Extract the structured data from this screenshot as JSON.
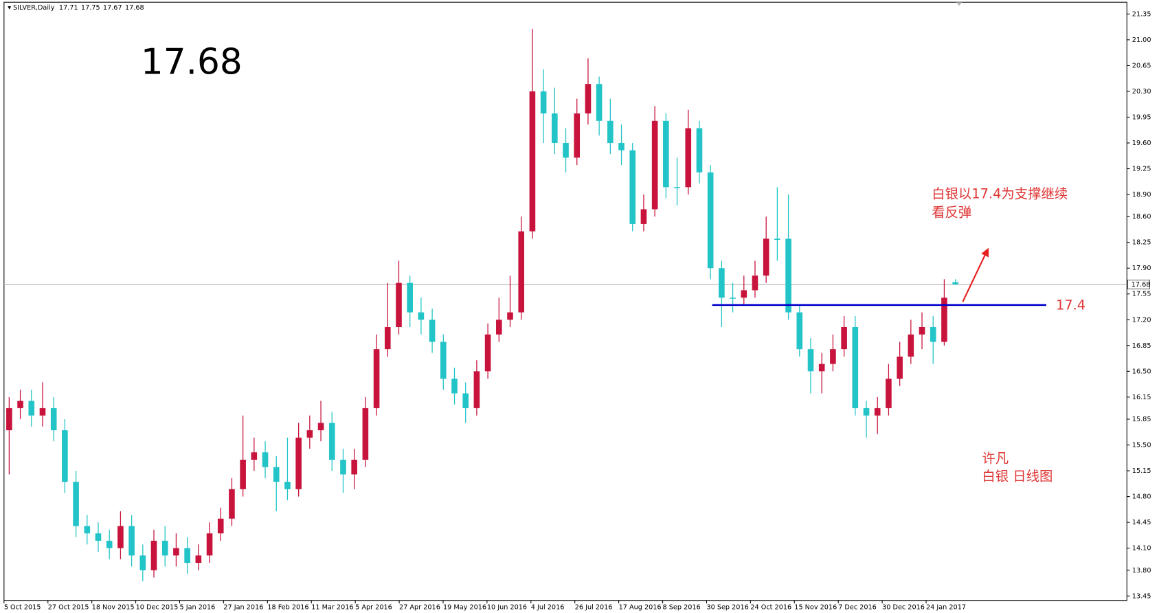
{
  "chart_data": {
    "type": "candlestick",
    "title": "SILVER,Daily",
    "categories": [
      "5 Oct 2015",
      null,
      null,
      null,
      "27 Oct 2015",
      null,
      null,
      null,
      "18 Nov 2015",
      null,
      null,
      null,
      "10 Dec 2015",
      null,
      null,
      null,
      "5 Jan 2016",
      null,
      null,
      null,
      "27 Jan 2016",
      null,
      null,
      null,
      "18 Feb 2016",
      null,
      null,
      null,
      "11 Mar 2016",
      null,
      null,
      null,
      "5 Apr 2016",
      null,
      null,
      null,
      "27 Apr 2016",
      null,
      null,
      null,
      "19 May 2016",
      null,
      null,
      null,
      "10 Jun 2016",
      null,
      null,
      null,
      "4 Jul 2016",
      null,
      null,
      null,
      "26 Jul 2016",
      null,
      null,
      null,
      "17 Aug 2016",
      null,
      null,
      null,
      "8 Sep 2016",
      null,
      null,
      null,
      "30 Sep 2016",
      null,
      null,
      null,
      "24 Oct 2016",
      null,
      null,
      null,
      "15 Nov 2016",
      null,
      null,
      null,
      "7 Dec 2016",
      null,
      null,
      null,
      "30 Dec 2016",
      null,
      null,
      null,
      "24 Jan 2017",
      null
    ],
    "open": [
      15.7,
      16.0,
      16.1,
      15.9,
      16.0,
      15.7,
      15.0,
      14.4,
      14.3,
      14.2,
      14.1,
      14.4,
      14.0,
      13.8,
      14.2,
      14.0,
      14.1,
      13.9,
      14.0,
      14.3,
      14.5,
      14.9,
      15.3,
      15.4,
      15.2,
      15.0,
      14.9,
      15.6,
      15.7,
      15.8,
      15.3,
      15.1,
      15.3,
      16.0,
      16.8,
      17.1,
      17.7,
      17.3,
      17.2,
      16.9,
      16.4,
      16.2,
      16.0,
      16.5,
      17.0,
      17.2,
      17.3,
      18.4,
      20.3,
      20.0,
      19.6,
      19.4,
      20.0,
      20.4,
      19.9,
      19.6,
      19.5,
      18.5,
      18.7,
      19.9,
      19.0,
      19.0,
      19.8,
      19.2,
      17.9,
      17.5,
      17.5,
      17.6,
      17.8,
      18.3,
      18.3,
      17.3,
      16.8,
      16.5,
      16.6,
      16.8,
      17.1,
      16.0,
      15.9,
      16.0,
      16.4,
      16.7,
      17.0,
      17.1,
      16.9,
      17.71
    ],
    "high": [
      16.15,
      16.25,
      16.25,
      16.35,
      16.15,
      15.85,
      15.15,
      14.55,
      14.45,
      14.35,
      14.6,
      14.55,
      14.15,
      14.35,
      14.4,
      14.3,
      14.25,
      14.15,
      14.45,
      14.65,
      15.05,
      15.9,
      15.6,
      15.55,
      15.35,
      15.6,
      15.8,
      15.9,
      16.1,
      15.95,
      15.45,
      15.45,
      16.15,
      17.0,
      17.7,
      18.0,
      17.8,
      17.5,
      17.35,
      17.0,
      16.55,
      16.35,
      16.65,
      17.15,
      17.5,
      17.8,
      18.6,
      21.15,
      20.6,
      20.35,
      19.8,
      20.2,
      20.75,
      20.5,
      20.2,
      19.85,
      19.6,
      18.9,
      20.1,
      20.0,
      19.4,
      20.05,
      19.9,
      19.3,
      18.0,
      17.7,
      17.8,
      18.0,
      18.6,
      19.0,
      18.9,
      17.4,
      16.95,
      16.75,
      17.0,
      17.25,
      17.25,
      16.1,
      16.15,
      16.6,
      16.9,
      17.2,
      17.3,
      17.25,
      17.75,
      17.75
    ],
    "low": [
      15.1,
      15.85,
      15.75,
      15.75,
      15.55,
      14.85,
      14.25,
      14.15,
      14.05,
      13.95,
      13.95,
      13.85,
      13.65,
      13.7,
      13.85,
      13.85,
      13.75,
      13.8,
      13.9,
      14.2,
      14.4,
      14.8,
      15.15,
      15.05,
      14.6,
      14.75,
      14.8,
      15.45,
      15.55,
      15.15,
      14.85,
      14.9,
      15.2,
      15.9,
      16.7,
      17.0,
      17.1,
      17.0,
      16.75,
      16.25,
      16.05,
      15.8,
      15.9,
      16.4,
      16.9,
      17.1,
      17.2,
      18.3,
      19.6,
      19.45,
      19.2,
      19.3,
      19.85,
      19.7,
      19.45,
      19.3,
      18.4,
      18.4,
      18.6,
      18.85,
      18.75,
      18.9,
      19.05,
      17.75,
      17.1,
      17.3,
      17.4,
      17.5,
      17.7,
      18.0,
      17.2,
      16.7,
      16.2,
      16.2,
      16.5,
      16.7,
      15.9,
      15.6,
      15.65,
      15.9,
      16.3,
      16.6,
      16.8,
      16.6,
      16.85,
      17.67
    ],
    "close": [
      16.0,
      16.1,
      15.9,
      16.0,
      15.7,
      15.0,
      14.4,
      14.3,
      14.2,
      14.1,
      14.4,
      14.0,
      13.8,
      14.2,
      14.0,
      14.1,
      13.9,
      14.0,
      14.3,
      14.5,
      14.9,
      15.3,
      15.4,
      15.2,
      15.0,
      14.9,
      15.6,
      15.7,
      15.8,
      15.3,
      15.1,
      15.3,
      16.0,
      16.8,
      17.1,
      17.7,
      17.3,
      17.2,
      16.9,
      16.4,
      16.2,
      16.0,
      16.5,
      17.0,
      17.2,
      17.3,
      18.4,
      20.3,
      20.0,
      19.6,
      19.4,
      20.0,
      20.4,
      19.9,
      19.6,
      19.5,
      18.5,
      18.7,
      19.9,
      19.0,
      19.0,
      19.8,
      19.2,
      17.9,
      17.5,
      17.5,
      17.6,
      17.8,
      18.3,
      18.3,
      17.3,
      16.8,
      16.5,
      16.6,
      16.8,
      17.1,
      16.0,
      15.9,
      16.0,
      16.4,
      16.7,
      17.0,
      17.1,
      16.9,
      17.5,
      17.68
    ],
    "up_color": "#c8143c",
    "down_color": "#22c4c8",
    "ylim": [
      13.39,
      21.51
    ],
    "yticks": [
      13.45,
      {
        "value": 13.8,
        "label": "13.80"
      },
      {
        "value": 14.1,
        "label": "14.10"
      },
      14.45,
      {
        "value": 14.8,
        "label": "14.80"
      },
      15.15,
      {
        "value": 15.5,
        "label": "15.50"
      },
      15.85,
      16.15,
      {
        "value": 16.5,
        "label": "16.50"
      },
      16.85,
      {
        "value": 17.2,
        "label": "17.20"
      },
      17.55,
      {
        "value": 17.9,
        "label": "17.90"
      },
      18.25,
      {
        "value": 18.6,
        "label": "18.60"
      },
      {
        "value": 18.9,
        "label": "18.90"
      },
      19.25,
      {
        "value": 19.6,
        "label": "19.60"
      },
      19.95,
      {
        "value": 20.3,
        "label": "20.30"
      },
      20.65,
      {
        "value": 21.0,
        "label": "21.00"
      },
      21.35
    ],
    "support_level": 17.4,
    "support_color": "#0000cc",
    "annotations": [
      "白银以17.4为支撑继续",
      "看反弹",
      "许凡",
      "白银 日线图"
    ]
  }
}
